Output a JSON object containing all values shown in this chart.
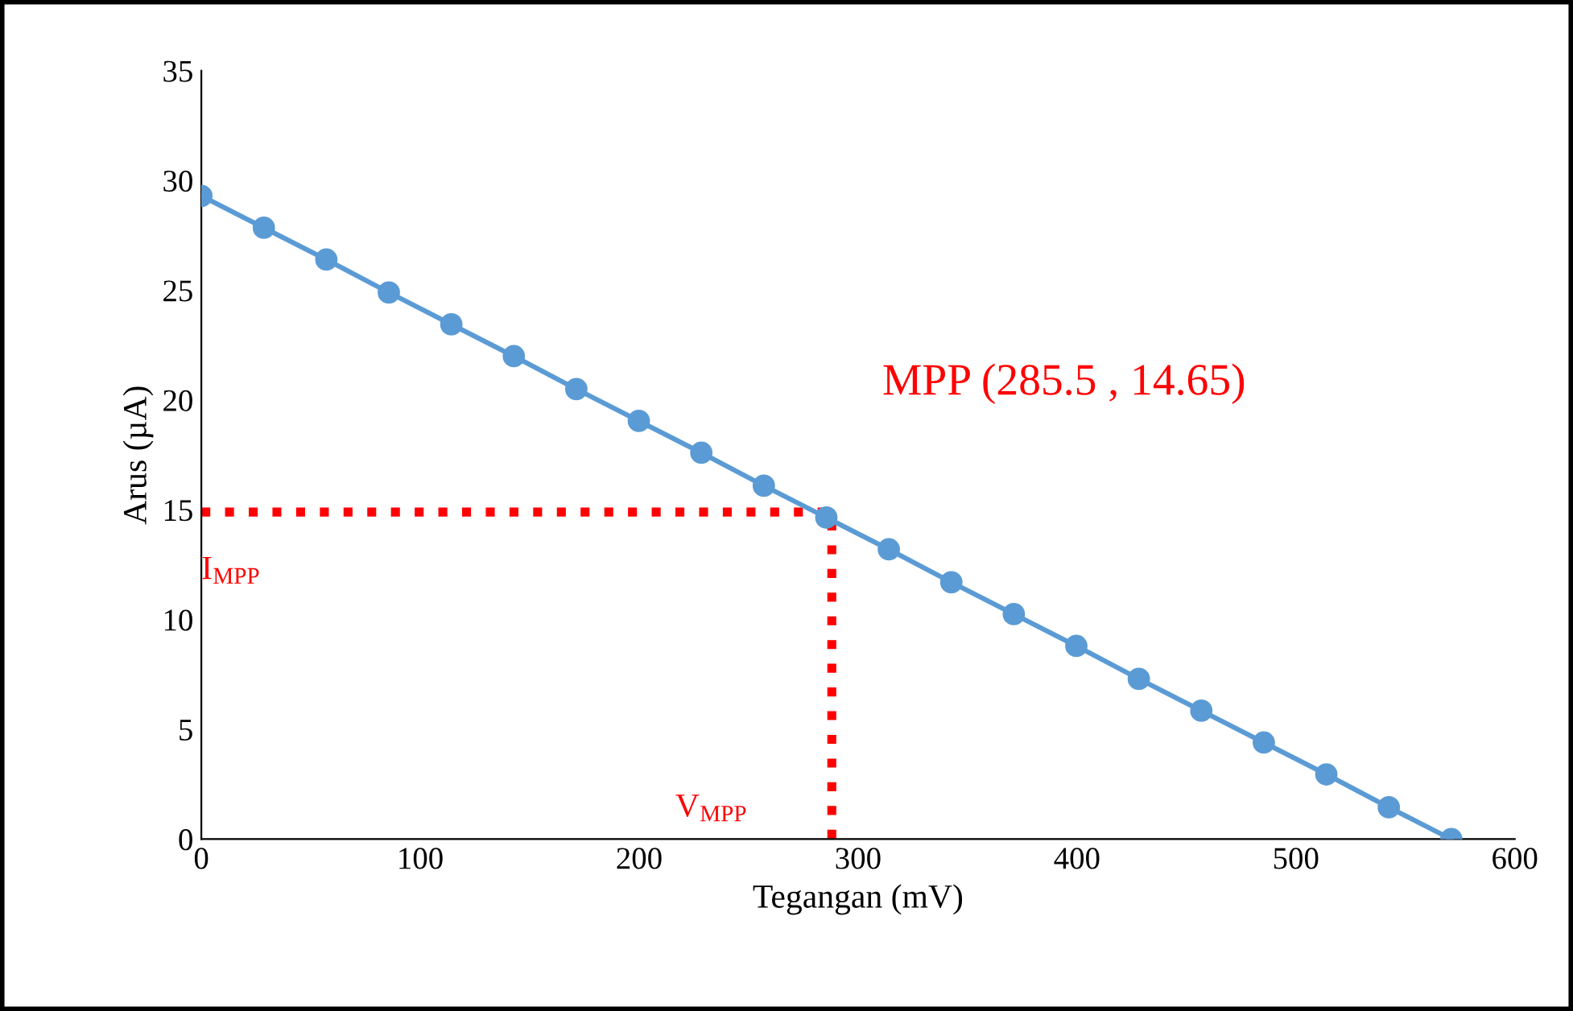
{
  "chart_data": {
    "type": "line",
    "xlabel": "Tegangan (mV)",
    "ylabel": "Arus (µA)",
    "xlim": [
      0,
      600
    ],
    "xticks": [
      0,
      100,
      200,
      300,
      400,
      500,
      600
    ],
    "ylim": [
      0,
      35
    ],
    "yticks": [
      0,
      5,
      10,
      15,
      20,
      25,
      30,
      35
    ],
    "grid": false,
    "legend": false,
    "series": [
      {
        "color": "#5b9bd5",
        "marker": "circle",
        "line_style": "solid",
        "x": [
          0,
          28.55,
          57.1,
          85.65,
          114.2,
          142.75,
          171.3,
          199.85,
          228.4,
          256.95,
          285.5,
          314.05,
          342.6,
          371.15,
          399.7,
          428.25,
          456.8,
          485.35,
          513.9,
          542.45,
          571
        ],
        "values": [
          29.3,
          27.85,
          26.4,
          24.9,
          23.45,
          22.0,
          20.5,
          19.05,
          17.6,
          16.1,
          14.65,
          13.2,
          11.7,
          10.25,
          8.8,
          7.3,
          5.85,
          4.4,
          2.95,
          1.45,
          0
        ]
      },
      {
        "color": "#ff0000",
        "marker": "none",
        "line_style": "dotted",
        "x": [
          0,
          288,
          288
        ],
        "values": [
          14.9,
          14.9,
          0
        ]
      }
    ],
    "annotations": [
      {
        "text": "MPP (285.5 , 14.65)",
        "x": 285.5,
        "y": 14.65
      },
      {
        "text": "I$_{MPP}$",
        "x": 0,
        "y": 14.9
      },
      {
        "text": "V$_{MPP}$",
        "x": 288,
        "y": 0
      }
    ]
  }
}
